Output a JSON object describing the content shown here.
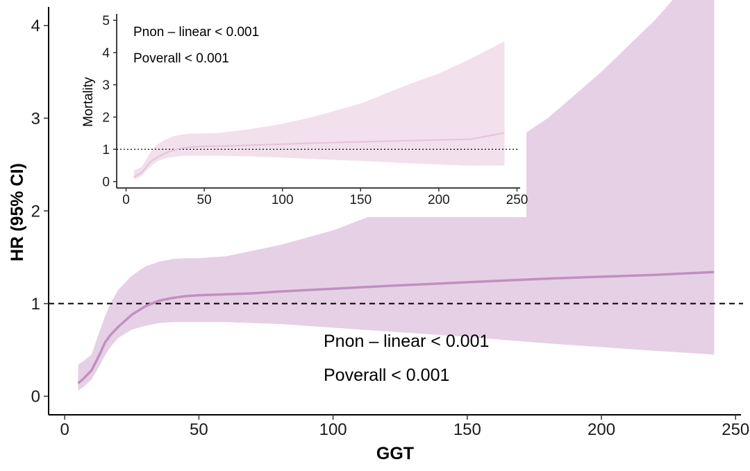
{
  "chart_data": [
    {
      "type": "line",
      "role": "main",
      "xlabel": "GGT",
      "ylabel": "HR (95% CI)",
      "xlim": [
        -6,
        252
      ],
      "ylim": [
        -0.2,
        4.2
      ],
      "xticks": [
        0,
        50,
        100,
        150,
        200,
        250
      ],
      "yticks": [
        0,
        1,
        2,
        3,
        4
      ],
      "reference_line": {
        "y": 1,
        "style": "dashed"
      },
      "line_color": "#c18fc0",
      "band_color": "#e6d0e5",
      "grid": false,
      "annotations": [
        "Pnon – linear < 0.001",
        "Poverall < 0.001"
      ],
      "series": [
        {
          "x": [
            5,
            7,
            10,
            13,
            15,
            17,
            20,
            25,
            30,
            35,
            40,
            45,
            50,
            60,
            70,
            80,
            100,
            120,
            150,
            180,
            200,
            220,
            242
          ],
          "y": [
            0.14,
            0.19,
            0.28,
            0.45,
            0.58,
            0.66,
            0.75,
            0.88,
            0.97,
            1.03,
            1.06,
            1.08,
            1.09,
            1.1,
            1.11,
            1.13,
            1.16,
            1.19,
            1.23,
            1.27,
            1.29,
            1.31,
            1.34
          ],
          "lower": [
            0.06,
            0.1,
            0.18,
            0.33,
            0.44,
            0.53,
            0.63,
            0.72,
            0.76,
            0.79,
            0.8,
            0.8,
            0.8,
            0.8,
            0.79,
            0.78,
            0.74,
            0.7,
            0.64,
            0.57,
            0.53,
            0.49,
            0.45
          ],
          "upper": [
            0.34,
            0.38,
            0.45,
            0.7,
            0.86,
            1.0,
            1.15,
            1.3,
            1.4,
            1.45,
            1.48,
            1.49,
            1.49,
            1.51,
            1.57,
            1.63,
            1.79,
            2.01,
            2.42,
            3.0,
            3.5,
            4.06,
            4.78
          ]
        }
      ]
    },
    {
      "type": "line",
      "role": "inset",
      "xlabel": "",
      "ylabel": "Mortality",
      "xlim": [
        -6,
        252
      ],
      "ylim": [
        -0.2,
        5.2
      ],
      "xticks": [
        0,
        50,
        100,
        150,
        200,
        250
      ],
      "yticks": [
        0,
        1,
        2,
        3,
        4,
        5
      ],
      "reference_line": {
        "y": 1,
        "style": "dotted"
      },
      "line_color": "#e4c3d8",
      "band_color": "#f2e0ec",
      "grid": false,
      "annotations": [
        "Pnon – linear < 0.001",
        "Poverall < 0.001"
      ],
      "series": [
        {
          "x": [
            5,
            7,
            10,
            13,
            15,
            17,
            20,
            25,
            30,
            35,
            40,
            45,
            50,
            60,
            70,
            80,
            100,
            120,
            150,
            180,
            200,
            220,
            242
          ],
          "y": [
            0.14,
            0.19,
            0.28,
            0.45,
            0.58,
            0.66,
            0.75,
            0.88,
            0.97,
            1.03,
            1.06,
            1.08,
            1.09,
            1.1,
            1.11,
            1.13,
            1.16,
            1.19,
            1.23,
            1.27,
            1.29,
            1.31,
            1.51
          ],
          "lower": [
            0.06,
            0.1,
            0.18,
            0.33,
            0.44,
            0.53,
            0.63,
            0.72,
            0.76,
            0.79,
            0.8,
            0.8,
            0.8,
            0.8,
            0.79,
            0.78,
            0.74,
            0.7,
            0.64,
            0.57,
            0.53,
            0.49,
            0.5
          ],
          "upper": [
            0.34,
            0.38,
            0.45,
            0.7,
            0.86,
            1.0,
            1.15,
            1.3,
            1.4,
            1.45,
            1.48,
            1.49,
            1.49,
            1.51,
            1.57,
            1.63,
            1.79,
            2.01,
            2.42,
            3.0,
            3.35,
            3.8,
            4.35
          ]
        }
      ]
    }
  ]
}
